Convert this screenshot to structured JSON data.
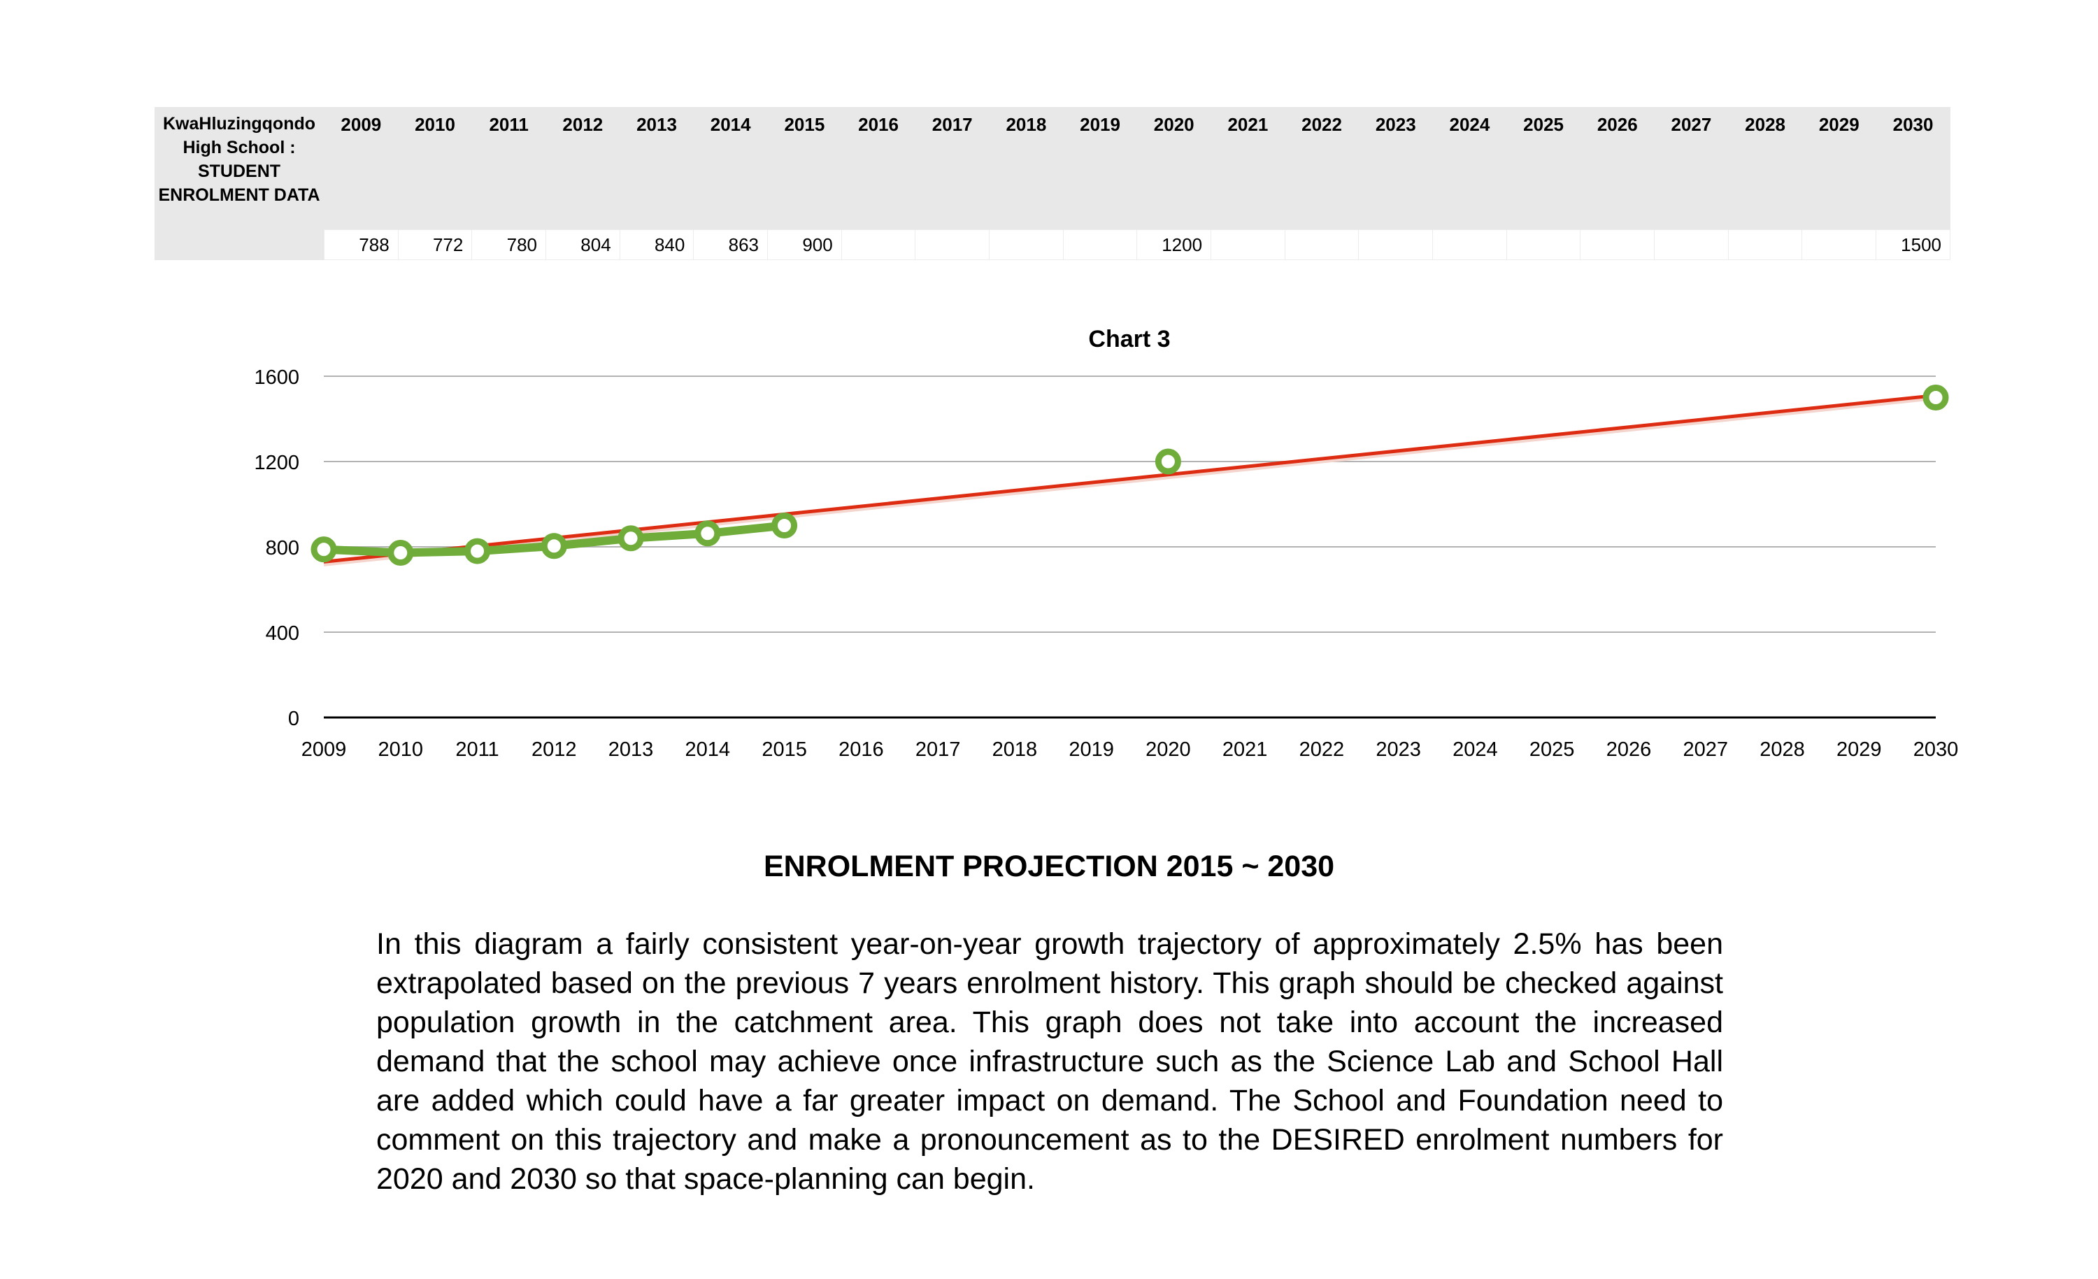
{
  "table": {
    "header_label": "KwaHluzingqondo High School : STUDENT ENROLMENT DATA",
    "years": [
      "2009",
      "2010",
      "2011",
      "2012",
      "2013",
      "2014",
      "2015",
      "2016",
      "2017",
      "2018",
      "2019",
      "2020",
      "2021",
      "2022",
      "2023",
      "2024",
      "2025",
      "2026",
      "2027",
      "2028",
      "2029",
      "2030"
    ],
    "values": [
      "788",
      "772",
      "780",
      "804",
      "840",
      "863",
      "900",
      "",
      "",
      "",
      "",
      "1200",
      "",
      "",
      "",
      "",
      "",
      "",
      "",
      "",
      "",
      "1500"
    ]
  },
  "chart_data": {
    "type": "line",
    "title": "Chart 3",
    "x": [
      2009,
      2010,
      2011,
      2012,
      2013,
      2014,
      2015,
      2016,
      2017,
      2018,
      2019,
      2020,
      2021,
      2022,
      2023,
      2024,
      2025,
      2026,
      2027,
      2028,
      2029,
      2030
    ],
    "series": [
      {
        "values": [
          788,
          772,
          780,
          804,
          840,
          863,
          900,
          null,
          null,
          null,
          null,
          1200,
          null,
          null,
          null,
          null,
          null,
          null,
          null,
          null,
          null,
          1500
        ],
        "color": "#6fac3a",
        "marker": "circle"
      },
      {
        "trendline": true,
        "start": [
          2009,
          730
        ],
        "end": [
          2030,
          1510
        ],
        "color": "#dd2c12"
      }
    ],
    "yticks": [
      0,
      400,
      800,
      1200,
      1600
    ],
    "ylim": [
      0,
      1600
    ],
    "xlim": [
      2009,
      2030
    ],
    "grid": true,
    "legend": "none"
  },
  "heading": "ENROLMENT PROJECTION 2015 ~ 2030",
  "paragraph": "In this diagram a fairly consistent year-on-year growth trajectory of approximately 2.5% has been extrapolated based on the previous 7 years enrolment history. This graph should be checked against population growth in the catchment area. This graph does not take into account the increased demand that the school may achieve once infrastructure such as the Science Lab and School Hall are added which could have a far greater impact on demand. The School and Foundation need to comment on this trajectory and make a pronouncement as to the DESIRED enrolment numbers for 2020 and 2030 so that space-planning can begin."
}
